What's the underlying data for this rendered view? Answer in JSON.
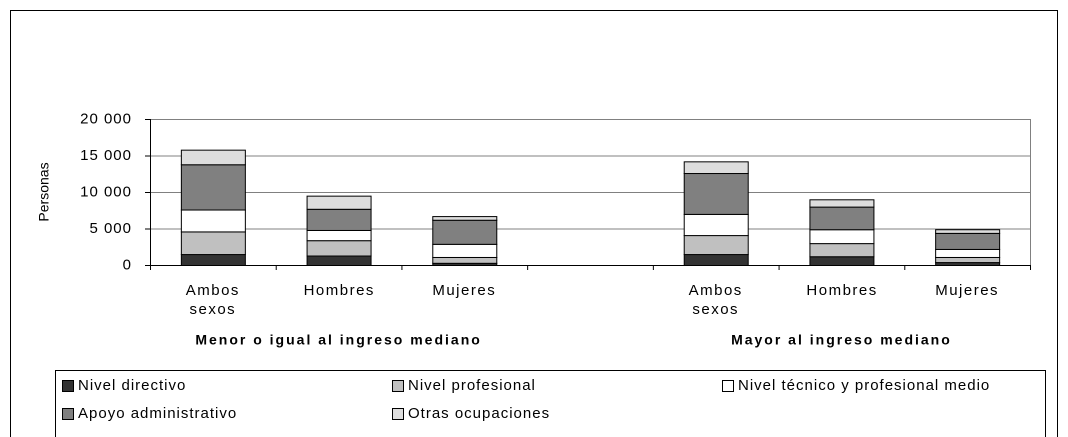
{
  "chart_data": {
    "type": "stacked_bar",
    "y_label": "Personas",
    "categories": [
      "Ambos sexos",
      "Hombres",
      "Mujeres",
      null,
      "Ambos sexos",
      "Hombres",
      "Mujeres"
    ],
    "groups": [
      {
        "name": "Menor o igual al ingreso mediano",
        "start": 0,
        "end": 2
      },
      {
        "name": "Mayor al ingreso mediano",
        "start": 4,
        "end": 6
      }
    ],
    "series": [
      {
        "name": "Nivel directivo",
        "color": "#333333",
        "values": [
          1500,
          1300,
          300,
          null,
          1500,
          1200,
          400
        ]
      },
      {
        "name": "Nivel profesional",
        "color": "#c0c0c0",
        "values": [
          3100,
          2100,
          800,
          null,
          2600,
          1800,
          700
        ]
      },
      {
        "name": "Nivel técnico y profesional medio",
        "color": "#ffffff",
        "values": [
          3000,
          1400,
          1800,
          null,
          2900,
          1900,
          1100
        ]
      },
      {
        "name": "Apoyo administrativo",
        "color": "#808080",
        "values": [
          6200,
          2900,
          3300,
          null,
          5600,
          3100,
          2200
        ]
      },
      {
        "name": "Otras ocupaciones",
        "color": "#dddddd",
        "values": [
          2000,
          1800,
          500,
          null,
          1600,
          1000,
          500
        ]
      }
    ],
    "ylim": [
      0,
      20000
    ],
    "yticks": [
      0,
      {
        "value": 5000,
        "label": "5 000"
      },
      {
        "value": 10000,
        "label": "10 000"
      },
      {
        "value": 15000,
        "label": "15 000"
      },
      {
        "value": 20000,
        "label": "20 000"
      }
    ],
    "grid": true
  }
}
